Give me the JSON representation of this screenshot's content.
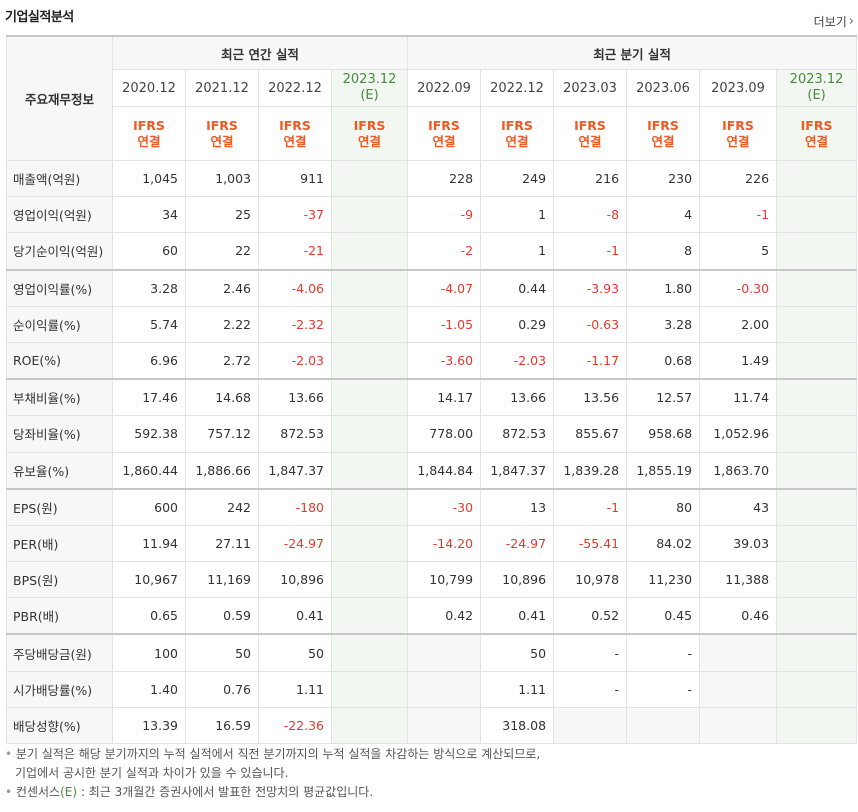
{
  "title": "기업실적분석",
  "more_label": "더보기",
  "header": {
    "corner": "주요재무정보",
    "annual_group": "최근 연간 실적",
    "quarter_group": "최근 분기 실적",
    "annual_periods": [
      "2020.12",
      "2021.12",
      "2022.12",
      "2023.12"
    ],
    "annual_est_mark": "(E)",
    "quarter_periods": [
      "2022.09",
      "2022.12",
      "2023.03",
      "2023.06",
      "2023.09",
      "2023.12"
    ],
    "quarter_est_mark": "(E)",
    "ifrs": "IFRS",
    "consolidated": "연결"
  },
  "rows": [
    {
      "label": "매출액(억원)",
      "values": [
        "1,045",
        "1,003",
        "911",
        "",
        "228",
        "249",
        "216",
        "230",
        "226",
        ""
      ]
    },
    {
      "label": "영업이익(억원)",
      "values": [
        "34",
        "25",
        "-37",
        "",
        "-9",
        "1",
        "-8",
        "4",
        "-1",
        ""
      ]
    },
    {
      "label": "당기순이익(억원)",
      "values": [
        "60",
        "22",
        "-21",
        "",
        "-2",
        "1",
        "-1",
        "8",
        "5",
        ""
      ]
    },
    {
      "label": "영업이익률(%)",
      "values": [
        "3.28",
        "2.46",
        "-4.06",
        "",
        "-4.07",
        "0.44",
        "-3.93",
        "1.80",
        "-0.30",
        ""
      ]
    },
    {
      "label": "순이익률(%)",
      "values": [
        "5.74",
        "2.22",
        "-2.32",
        "",
        "-1.05",
        "0.29",
        "-0.63",
        "3.28",
        "2.00",
        ""
      ]
    },
    {
      "label": "ROE(%)",
      "values": [
        "6.96",
        "2.72",
        "-2.03",
        "",
        "-3.60",
        "-2.03",
        "-1.17",
        "0.68",
        "1.49",
        ""
      ]
    },
    {
      "label": "부채비율(%)",
      "values": [
        "17.46",
        "14.68",
        "13.66",
        "",
        "14.17",
        "13.66",
        "13.56",
        "12.57",
        "11.74",
        ""
      ]
    },
    {
      "label": "당좌비율(%)",
      "values": [
        "592.38",
        "757.12",
        "872.53",
        "",
        "778.00",
        "872.53",
        "855.67",
        "958.68",
        "1,052.96",
        ""
      ]
    },
    {
      "label": "유보율(%)",
      "values": [
        "1,860.44",
        "1,886.66",
        "1,847.37",
        "",
        "1,844.84",
        "1,847.37",
        "1,839.28",
        "1,855.19",
        "1,863.70",
        ""
      ]
    },
    {
      "label": "EPS(원)",
      "values": [
        "600",
        "242",
        "-180",
        "",
        "-30",
        "13",
        "-1",
        "80",
        "43",
        ""
      ]
    },
    {
      "label": "PER(배)",
      "values": [
        "11.94",
        "27.11",
        "-24.97",
        "",
        "-14.20",
        "-24.97",
        "-55.41",
        "84.02",
        "39.03",
        ""
      ]
    },
    {
      "label": "BPS(원)",
      "values": [
        "10,967",
        "11,169",
        "10,896",
        "",
        "10,799",
        "10,896",
        "10,978",
        "11,230",
        "11,388",
        ""
      ]
    },
    {
      "label": "PBR(배)",
      "values": [
        "0.65",
        "0.59",
        "0.41",
        "",
        "0.42",
        "0.41",
        "0.52",
        "0.45",
        "0.46",
        ""
      ]
    },
    {
      "label": "주당배당금(원)",
      "values": [
        "100",
        "50",
        "50",
        "",
        "",
        "50",
        "-",
        "-",
        "",
        ""
      ]
    },
    {
      "label": "시가배당률(%)",
      "values": [
        "1.40",
        "0.76",
        "1.11",
        "",
        "",
        "1.11",
        "-",
        "-",
        "",
        ""
      ]
    },
    {
      "label": "배당성향(%)",
      "values": [
        "13.39",
        "16.59",
        "-22.36",
        "",
        "",
        "318.08",
        "",
        "",
        "",
        ""
      ]
    }
  ],
  "footnotes": {
    "line1": "분기 실적은 해당 분기까지의 누적 실적에서 직전 분기까지의 누적 실적을 차감하는 방식으로 계산되므로,",
    "line2": "기업에서 공시한 분기 실적과 차이가 있을 수 있습니다.",
    "line3_a": "컨센서스",
    "line3_b": "(E)",
    "line3_c": " : 최근 3개월간 증권사에서 발표한 전망치의 평균값입니다."
  }
}
